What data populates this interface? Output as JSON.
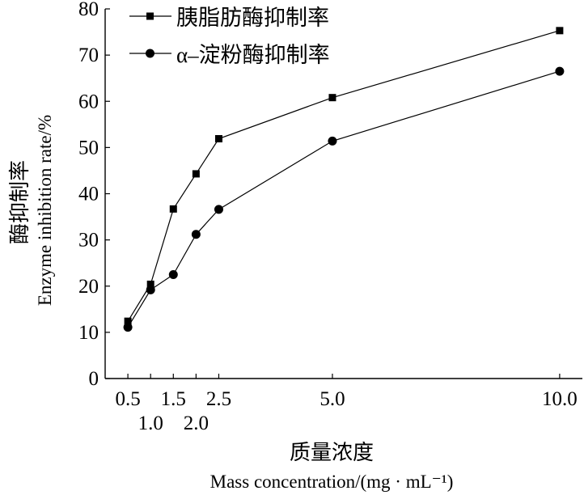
{
  "chart_data": {
    "type": "line",
    "x": [
      0.5,
      1.0,
      1.5,
      2.0,
      2.5,
      5.0,
      10.0
    ],
    "xtick_labels": [
      "0.5",
      "1.0",
      "1.5",
      "2.0",
      "2.5",
      "5.0",
      "10.0"
    ],
    "yticks": [
      0,
      10,
      20,
      30,
      40,
      50,
      60,
      70,
      80
    ],
    "xlim": [
      0,
      10.5
    ],
    "ylim": [
      0,
      80
    ],
    "series": [
      {
        "name": "胰脂肪酶抑制率",
        "marker": "square",
        "color": "#000000",
        "values": [
          12.4,
          20.4,
          36.7,
          44.3,
          51.9,
          60.8,
          75.3
        ]
      },
      {
        "name": "α–淀粉酶抑制率",
        "marker": "circle",
        "color": "#000000",
        "values": [
          11.1,
          19.2,
          22.5,
          31.2,
          36.6,
          51.4,
          66.5
        ]
      }
    ],
    "xlabel": "质量浓度",
    "xlabel_en": "Mass concentration/(mg · mL⁻¹)",
    "ylabel": "酶抑制率",
    "ylabel_en": "Enzyme inhibition rate/%",
    "legend": "top-left",
    "grid": false
  }
}
